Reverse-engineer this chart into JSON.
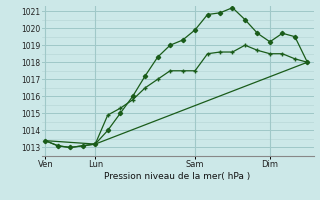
{
  "title": "Pression niveau de la mer( hPa )",
  "ylabel_values": [
    1013,
    1014,
    1015,
    1016,
    1017,
    1018,
    1019,
    1020,
    1021
  ],
  "ylim": [
    1012.5,
    1021.3
  ],
  "xlim": [
    -0.3,
    21.5
  ],
  "bg_color": "#cce8e8",
  "grid_minor_color": "#b8d8d8",
  "grid_major_color": "#a0c8c8",
  "line_color": "#1a5c1a",
  "xtick_labels": [
    "Ven",
    "Lun",
    "Sam",
    "Dim"
  ],
  "xtick_positions": [
    0,
    4,
    12,
    18
  ],
  "vline_positions": [
    0,
    4,
    12,
    18
  ],
  "line1_x": [
    0,
    1,
    2,
    3,
    4,
    5,
    6,
    7,
    8,
    9,
    10,
    11,
    12,
    13,
    14,
    15,
    16,
    17,
    18,
    19,
    20,
    21
  ],
  "line1_y": [
    1013.4,
    1013.1,
    1013.0,
    1013.1,
    1013.2,
    1014.9,
    1015.3,
    1015.8,
    1016.5,
    1017.0,
    1017.5,
    1017.5,
    1017.5,
    1018.5,
    1018.6,
    1018.6,
    1019.0,
    1018.7,
    1018.5,
    1018.5,
    1018.2,
    1018.0
  ],
  "line2_x": [
    0,
    1,
    2,
    3,
    4,
    5,
    6,
    7,
    8,
    9,
    10,
    11,
    12,
    13,
    14,
    15,
    16,
    17,
    18,
    19,
    20,
    21
  ],
  "line2_y": [
    1013.4,
    1013.1,
    1013.0,
    1013.1,
    1013.2,
    1014.0,
    1015.0,
    1016.0,
    1017.2,
    1018.3,
    1019.0,
    1019.3,
    1019.9,
    1020.8,
    1020.9,
    1021.2,
    1020.5,
    1019.7,
    1019.2,
    1019.7,
    1019.5,
    1018.0
  ],
  "line3_x": [
    0,
    4,
    21
  ],
  "line3_y": [
    1013.4,
    1013.2,
    1018.0
  ]
}
